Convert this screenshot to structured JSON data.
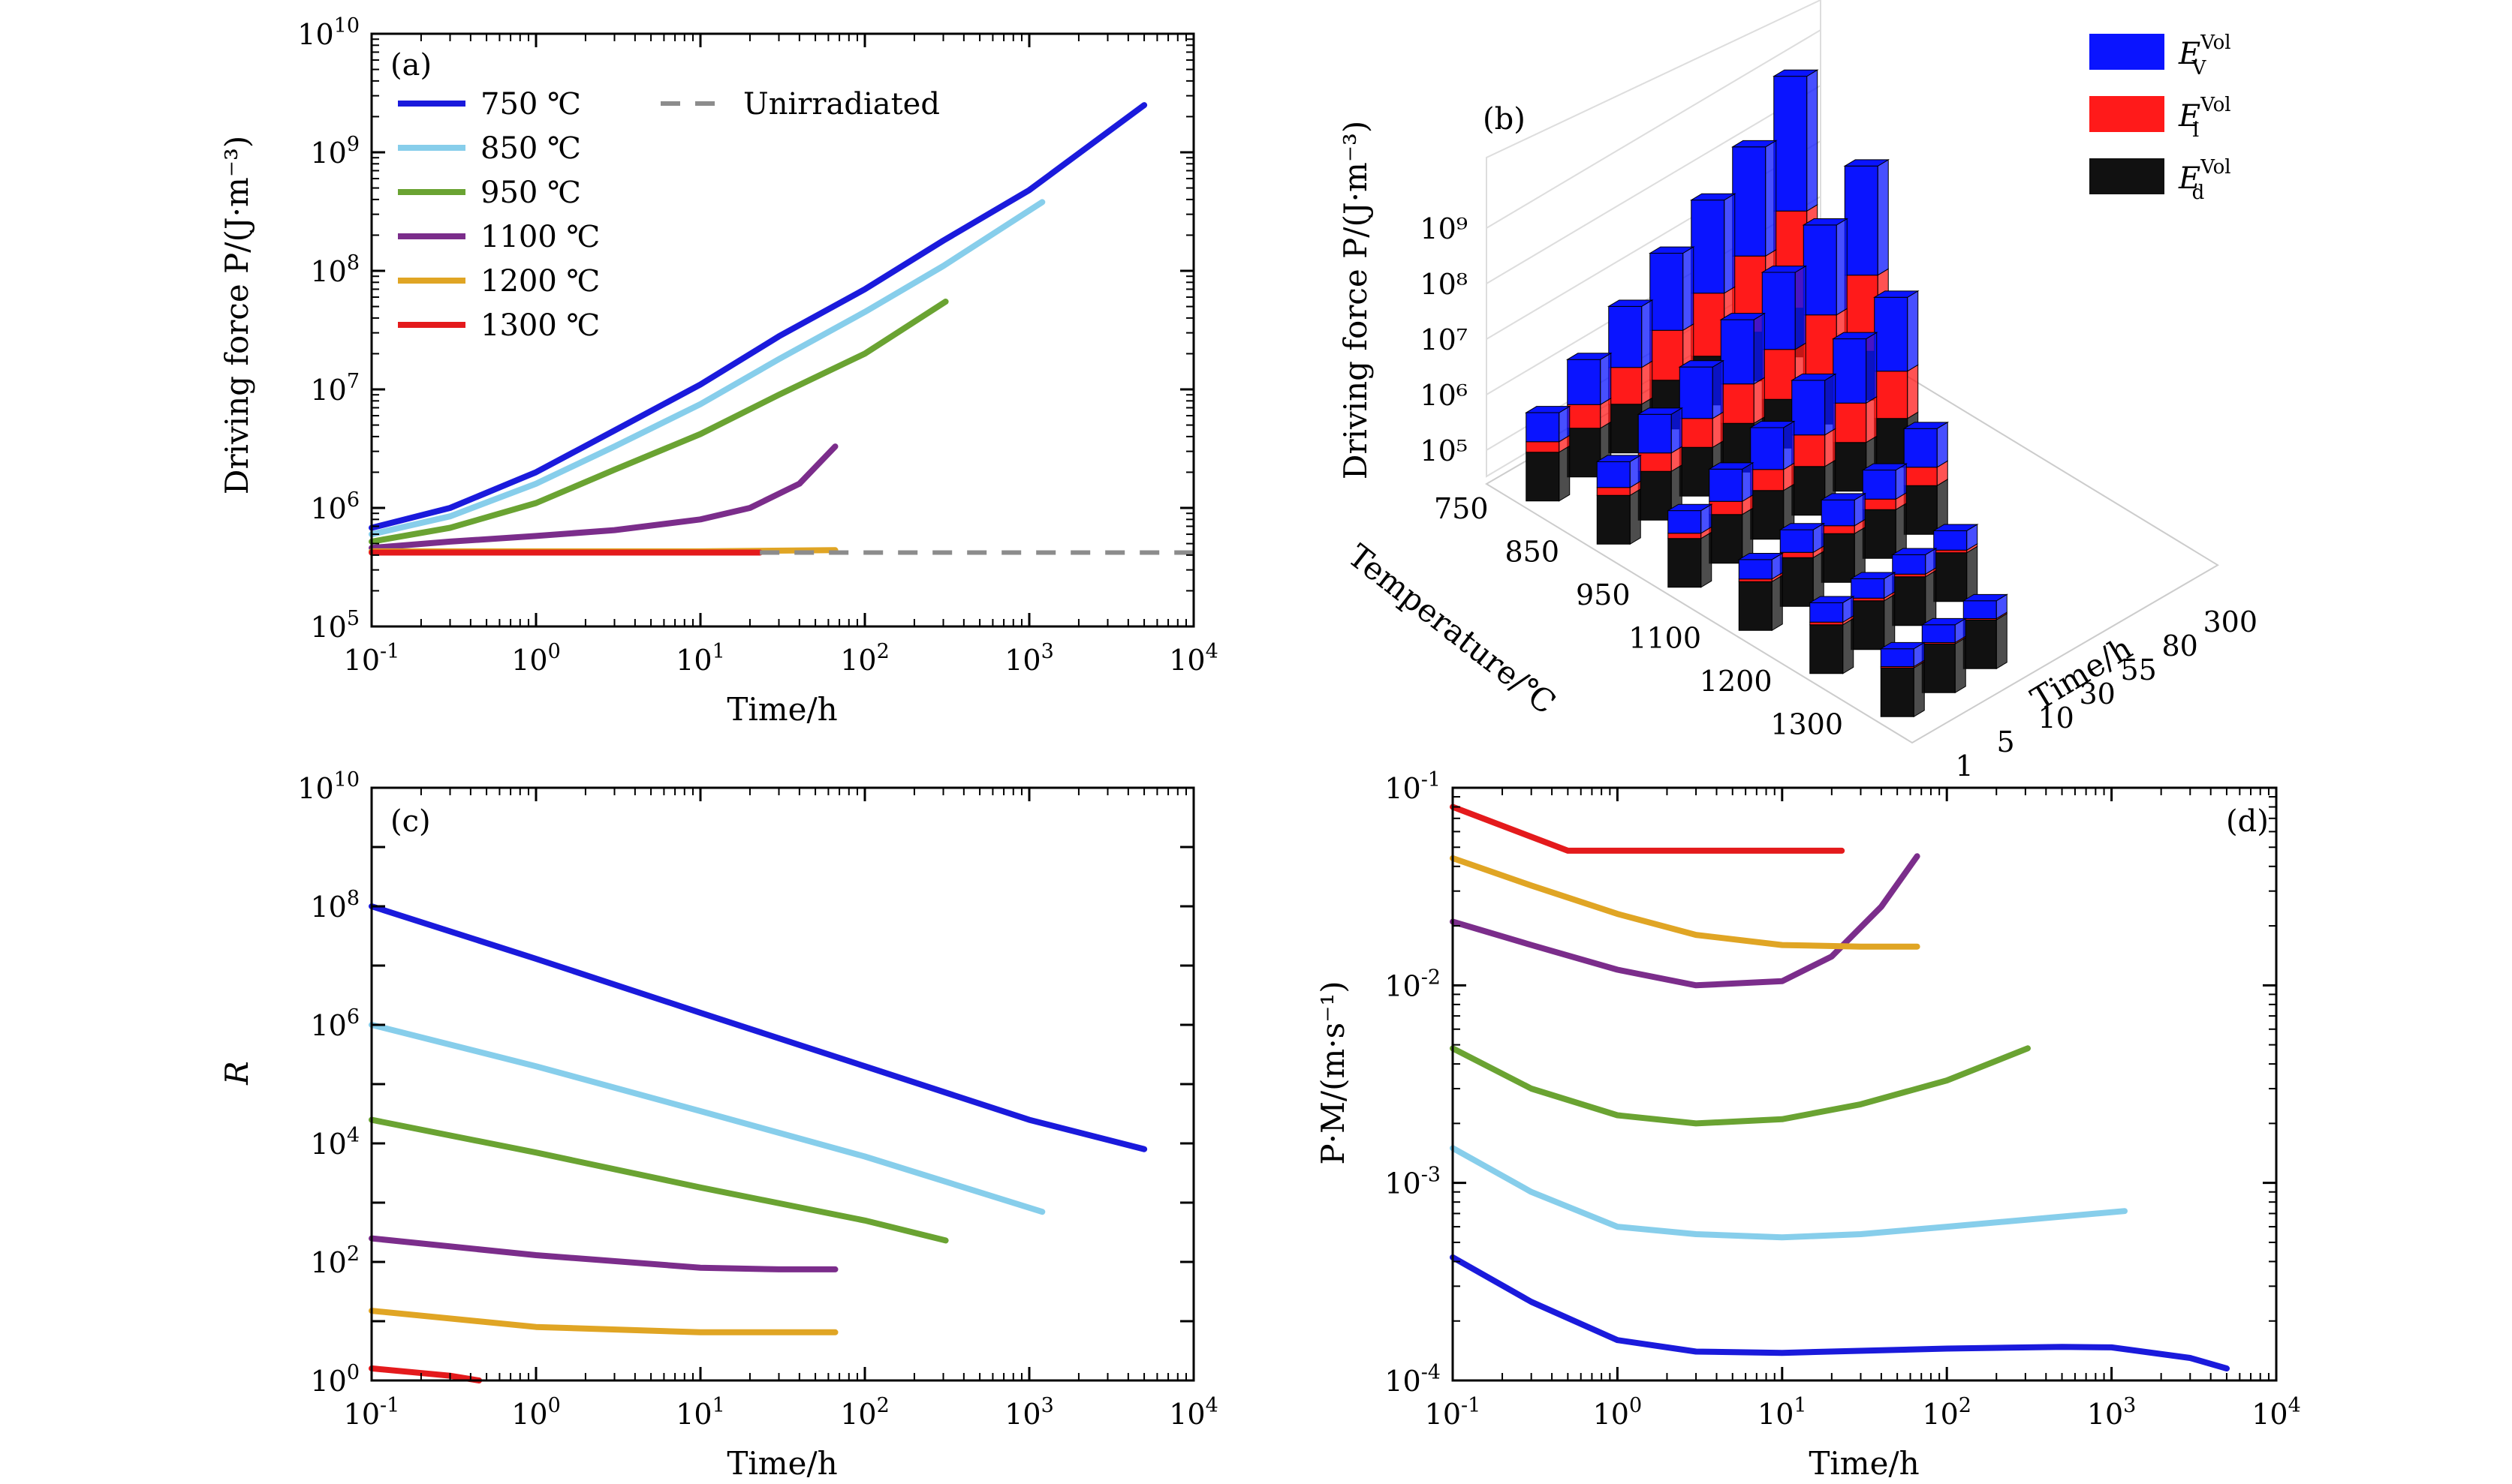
{
  "panels": {
    "a": {
      "label": "(a)",
      "xlabel": "Time/h",
      "ylabel": "Driving force P/(J·m⁻³)"
    },
    "b": {
      "label": "(b)",
      "xlabel": "Time/h",
      "ylabel": "Driving force P/(J·m⁻³)",
      "zlabel": "Temperature/℃"
    },
    "c": {
      "label": "(c)",
      "xlabel": "Time/h",
      "ylabel": "R"
    },
    "d": {
      "label": "(d)",
      "xlabel": "Time/h",
      "ylabel": "P·M/(m·s⁻¹)"
    }
  },
  "colors": {
    "750": "#1a1adc",
    "850": "#87ceeb",
    "950": "#6aa332",
    "1100": "#7b2d8b",
    "1200": "#e0a524",
    "1300": "#e41a1c",
    "unirr": "#8c8c8c",
    "ev": "#0a14ff",
    "ei": "#ff1a1a",
    "ed": "#111111"
  },
  "legend_a": [
    {
      "label": "750 ℃",
      "key": "750"
    },
    {
      "label": "850 ℃",
      "key": "850"
    },
    {
      "label": "950 ℃",
      "key": "950"
    },
    {
      "label": "1100 ℃",
      "key": "1100"
    },
    {
      "label": "1200 ℃",
      "key": "1200"
    },
    {
      "label": "1300 ℃",
      "key": "1300"
    },
    {
      "label": "Unirradiated",
      "key": "unirr"
    }
  ],
  "legend_b": [
    {
      "main": "E",
      "sub": "V",
      "sup": "Vol",
      "key": "ev"
    },
    {
      "main": "E",
      "sub": "I",
      "sup": "Vol",
      "key": "ei"
    },
    {
      "main": "E",
      "sub": "d",
      "sup": "Vol",
      "key": "ed"
    }
  ],
  "b_axes": {
    "temps": [
      "750",
      "850",
      "950",
      "1100",
      "1200",
      "1300"
    ],
    "times": [
      "1",
      "5",
      "10",
      "30",
      "55",
      "80",
      "300"
    ],
    "zticks": [
      "10⁵",
      "10⁶",
      "10⁷",
      "10⁸",
      "10⁹"
    ]
  },
  "chart_data": [
    {
      "panel": "a",
      "type": "line",
      "xscale": "log",
      "yscale": "log",
      "xlim": [
        0.1,
        10000
      ],
      "ylim": [
        100000,
        10000000000
      ],
      "xticks": [
        0.1,
        1,
        10,
        100,
        1000,
        10000
      ],
      "yticks": [
        100000,
        1000000,
        10000000,
        100000000,
        1000000000,
        10000000000
      ],
      "xlabel": "Time/h",
      "ylabel": "Driving force P/(J·m⁻³)",
      "series": [
        {
          "name": "750 ℃",
          "key": "750",
          "x": [
            0.1,
            0.3,
            1,
            3,
            10,
            30,
            100,
            300,
            1000,
            5000
          ],
          "y": [
            680000,
            1000000,
            2000000,
            4500000,
            11000000,
            28000000,
            70000000,
            180000000,
            480000000,
            2500000000
          ]
        },
        {
          "name": "850 ℃",
          "key": "850",
          "x": [
            0.1,
            0.3,
            1,
            3,
            10,
            30,
            100,
            300,
            1200
          ],
          "y": [
            600000,
            850000,
            1600000,
            3300000,
            7500000,
            18000000,
            45000000,
            110000000,
            380000000
          ]
        },
        {
          "name": "950 ℃",
          "key": "950",
          "x": [
            0.1,
            0.3,
            1,
            3,
            10,
            30,
            100,
            310
          ],
          "y": [
            520000,
            680000,
            1100000,
            2100000,
            4200000,
            9000000,
            20000000,
            55000000
          ]
        },
        {
          "name": "1100 ℃",
          "key": "1100",
          "x": [
            0.1,
            0.3,
            1,
            3,
            10,
            20,
            40,
            66
          ],
          "y": [
            460000,
            520000,
            580000,
            650000,
            800000,
            1000000,
            1600000,
            3300000
          ]
        },
        {
          "name": "1200 ℃",
          "key": "1200",
          "x": [
            0.1,
            1,
            10,
            66
          ],
          "y": [
            430000,
            430000,
            430000,
            440000
          ]
        },
        {
          "name": "1300 ℃",
          "key": "1300",
          "x": [
            0.1,
            1,
            10,
            23
          ],
          "y": [
            420000,
            420000,
            420000,
            420000
          ]
        },
        {
          "name": "Unirradiated",
          "key": "unirr",
          "dash": true,
          "x": [
            23,
            10000
          ],
          "y": [
            420000,
            420000
          ]
        }
      ]
    },
    {
      "panel": "b",
      "type": "bar",
      "xlabel": "Time/h",
      "ylabel": "Driving force P/(J·m⁻³)",
      "zlabel": "Temperature/℃",
      "zscale": "log",
      "series": [
        {
          "name": "E_V^Vol",
          "key": "ev"
        },
        {
          "name": "E_I^Vol",
          "key": "ei"
        },
        {
          "name": "E_d^Vol",
          "key": "ed"
        }
      ],
      "temps": [
        750,
        850,
        950,
        1100,
        1200,
        1300
      ],
      "times": [
        1,
        5,
        10,
        30,
        55,
        80,
        300
      ],
      "bar_totals_log10": [
        [
          6.0,
          6.5,
          7.0,
          7.5,
          8.0,
          8.5,
          9.3
        ],
        [
          5.9,
          6.3,
          6.7,
          7.1,
          7.5,
          7.9,
          8.5
        ],
        [
          5.8,
          6.1,
          6.4,
          6.8,
          7.1,
          7.4,
          null
        ],
        [
          5.7,
          5.8,
          5.9,
          6.0,
          6.3,
          null,
          null
        ],
        [
          5.7,
          5.7,
          5.7,
          5.7,
          null,
          null,
          null
        ],
        [
          5.65,
          5.65,
          5.65,
          null,
          null,
          null,
          null
        ]
      ]
    },
    {
      "panel": "c",
      "type": "line",
      "xscale": "log",
      "yscale": "log",
      "xlim": [
        0.1,
        10000
      ],
      "ylim": [
        1,
        10000000000
      ],
      "xticks": [
        0.1,
        1,
        10,
        100,
        1000,
        10000
      ],
      "yticks": [
        1,
        100,
        10000,
        1000000,
        100000000,
        10000000000
      ],
      "xlabel": "Time/h",
      "ylabel": "R",
      "series": [
        {
          "key": "750",
          "x": [
            0.1,
            1,
            10,
            100,
            1000,
            5000
          ],
          "y": [
            100000000,
            13000000,
            1600000,
            200000,
            25000,
            8000
          ]
        },
        {
          "key": "850",
          "x": [
            0.1,
            1,
            10,
            100,
            1200
          ],
          "y": [
            1000000,
            200000,
            35000,
            6000,
            700
          ]
        },
        {
          "key": "950",
          "x": [
            0.1,
            1,
            10,
            100,
            310
          ],
          "y": [
            25000,
            7000,
            1800,
            500,
            230
          ]
        },
        {
          "key": "1100",
          "x": [
            0.1,
            1,
            10,
            30,
            66
          ],
          "y": [
            250,
            130,
            80,
            75,
            75
          ]
        },
        {
          "key": "1200",
          "x": [
            0.1,
            1,
            10,
            66
          ],
          "y": [
            15,
            8,
            6.5,
            6.5
          ]
        },
        {
          "key": "1300",
          "x": [
            0.1,
            0.3,
            0.45
          ],
          "y": [
            1.6,
            1.2,
            1.0
          ]
        }
      ]
    },
    {
      "panel": "d",
      "type": "line",
      "xscale": "log",
      "yscale": "log",
      "xlim": [
        0.1,
        10000
      ],
      "ylim": [
        0.0001,
        0.1
      ],
      "xticks": [
        0.1,
        1,
        10,
        100,
        1000,
        10000
      ],
      "yticks": [
        0.0001,
        0.001,
        0.01,
        0.1
      ],
      "xlabel": "Time/h",
      "ylabel": "P·M/(m·s⁻¹)",
      "series": [
        {
          "key": "750",
          "x": [
            0.1,
            0.3,
            1,
            3,
            10,
            100,
            500,
            1000,
            3000,
            5000
          ],
          "y": [
            0.00042,
            0.00025,
            0.00016,
            0.00014,
            0.000138,
            0.000145,
            0.000148,
            0.000147,
            0.00013,
            0.000115
          ]
        },
        {
          "key": "850",
          "x": [
            0.1,
            0.3,
            1,
            3,
            10,
            30,
            100,
            1200
          ],
          "y": [
            0.0015,
            0.0009,
            0.0006,
            0.00055,
            0.00053,
            0.00055,
            0.0006,
            0.00072
          ]
        },
        {
          "key": "950",
          "x": [
            0.1,
            0.3,
            1,
            3,
            10,
            30,
            100,
            310
          ],
          "y": [
            0.0048,
            0.003,
            0.0022,
            0.002,
            0.0021,
            0.0025,
            0.0033,
            0.0048
          ]
        },
        {
          "key": "1100",
          "x": [
            0.1,
            0.3,
            1,
            3,
            10,
            20,
            40,
            66
          ],
          "y": [
            0.021,
            0.016,
            0.012,
            0.01,
            0.0105,
            0.014,
            0.025,
            0.045
          ]
        },
        {
          "key": "1200",
          "x": [
            0.1,
            0.3,
            1,
            3,
            10,
            30,
            66
          ],
          "y": [
            0.044,
            0.032,
            0.023,
            0.018,
            0.016,
            0.0157,
            0.0157
          ]
        },
        {
          "key": "1300",
          "x": [
            0.1,
            0.5,
            1,
            10,
            23
          ],
          "y": [
            0.08,
            0.048,
            0.048,
            0.048,
            0.048
          ]
        }
      ]
    }
  ]
}
